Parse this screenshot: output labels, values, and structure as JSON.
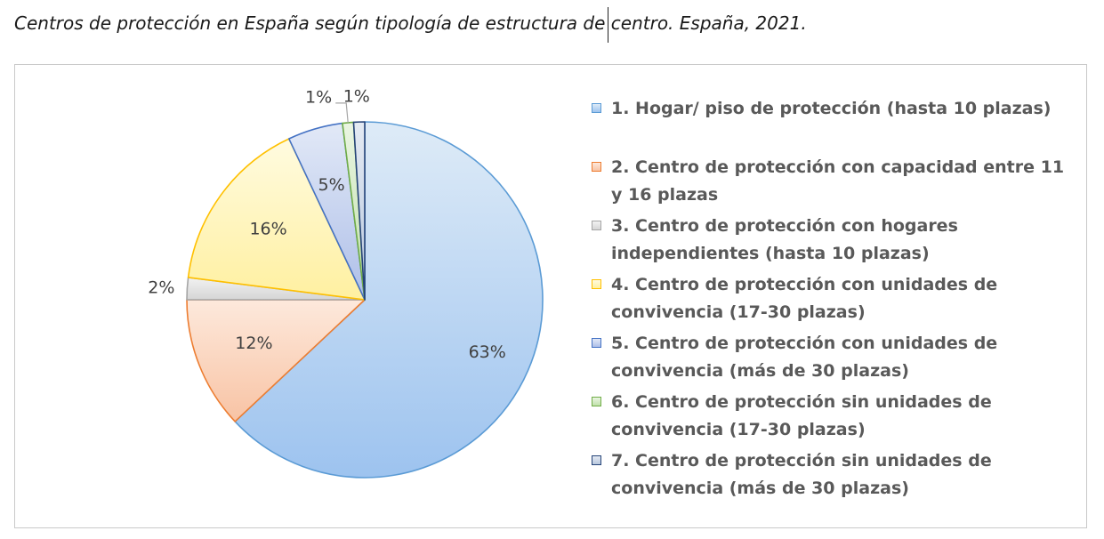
{
  "title": "Centros de protección en España según tipología de estructura de centro. España, 2021.",
  "chart_data": {
    "type": "pie",
    "title": "",
    "categories": [
      "1. Hogar/ piso de protección (hasta 10 plazas)",
      "2. Centro de protección con capacidad entre 11 y 16 plazas",
      "3. Centro de protección con hogares independientes (hasta 10 plazas)",
      "4. Centro de protección con unidades de convivencia (17-30 plazas)",
      "5. Centro de protección con unidades de convivencia (más de 30 plazas)",
      "6. Centro de protección sin unidades de convivencia (17-30 plazas)",
      "7. Centro de protección sin unidades de convivencia (más de 30 plazas)"
    ],
    "values": [
      63,
      12,
      2,
      16,
      5,
      1,
      1
    ],
    "data_labels": [
      "63%",
      "12%",
      "2%",
      "16%",
      "5%",
      "1%",
      "1%"
    ],
    "colors": [
      {
        "edge": "#5b9bd5",
        "light": "#deebf7",
        "dark": "#9dc3ef"
      },
      {
        "edge": "#ed7d31",
        "light": "#fde9dc",
        "dark": "#f8c3a4"
      },
      {
        "edge": "#a5a5a5",
        "light": "#f2f2f2",
        "dark": "#d5d5d5"
      },
      {
        "edge": "#ffc000",
        "light": "#fffbe0",
        "dark": "#fff0a0"
      },
      {
        "edge": "#4472c4",
        "light": "#e2e9f7",
        "dark": "#aebfe8"
      },
      {
        "edge": "#70ad47",
        "light": "#eaf5e2",
        "dark": "#c0e0aa"
      },
      {
        "edge": "#264478",
        "light": "#e4eaf3",
        "dark": "#b8c7dd"
      }
    ],
    "legend_position": "right"
  }
}
